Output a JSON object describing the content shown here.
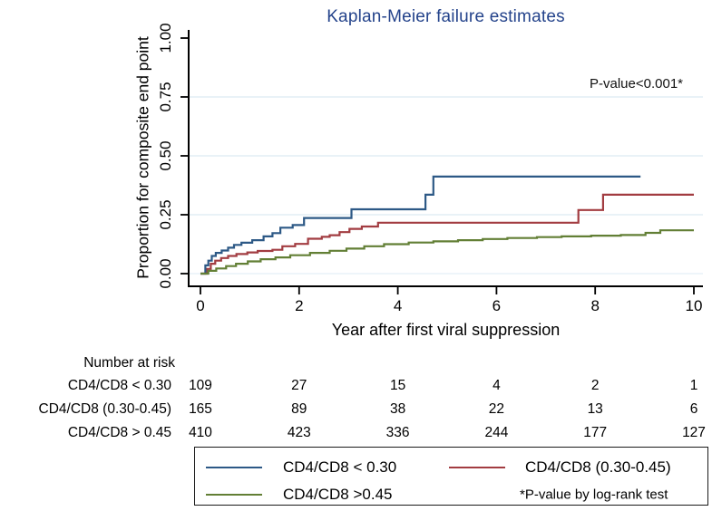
{
  "title": "Kaplan-Meier failure estimates",
  "annotation": "P-value<0.001*",
  "colors": {
    "title": "#24438b",
    "navy": "#2d5986",
    "maroon": "#a23c41",
    "olive": "#627f35",
    "grid": "#dce9f2",
    "zero_line": "#e4eff6",
    "axis": "#000000"
  },
  "chart_data": {
    "type": "line",
    "subtype": "kaplan-meier-step",
    "title": "Kaplan-Meier failure estimates",
    "xlabel": "Year after first viral suppression",
    "ylabel": "Proportion for composite end point",
    "xlim": [
      0,
      10
    ],
    "ylim": [
      0,
      1
    ],
    "x_ticks": [
      0,
      2,
      4,
      6,
      8,
      10
    ],
    "y_ticks": [
      {
        "value": 0.0,
        "label": "0.00"
      },
      {
        "value": 0.25,
        "label": "0.25"
      },
      {
        "value": 0.5,
        "label": "0.50"
      },
      {
        "value": 0.75,
        "label": "0.75"
      },
      {
        "value": 1.0,
        "label": "1.00"
      }
    ],
    "grid": "horizontal gridlines at 0.25, 0.50, 0.75 and faint baseline at 0.00",
    "legend_position": "boxed legend below plot",
    "annotation": "P-value<0.001*",
    "series": [
      {
        "id": "cd4cd8-lt-030",
        "name": "CD4/CD8 < 0.30",
        "color": "#2d5986",
        "end_x": 8.92,
        "steps": [
          [
            0,
            0
          ],
          [
            0.1,
            0.035
          ],
          [
            0.16,
            0.055
          ],
          [
            0.23,
            0.075
          ],
          [
            0.31,
            0.088
          ],
          [
            0.43,
            0.098
          ],
          [
            0.56,
            0.11
          ],
          [
            0.68,
            0.122
          ],
          [
            0.83,
            0.131
          ],
          [
            1.05,
            0.142
          ],
          [
            1.28,
            0.158
          ],
          [
            1.46,
            0.172
          ],
          [
            1.62,
            0.195
          ],
          [
            1.87,
            0.206
          ],
          [
            2.1,
            0.236
          ],
          [
            3.06,
            0.273
          ],
          [
            4.56,
            0.335
          ],
          [
            4.72,
            0.412
          ]
        ]
      },
      {
        "id": "cd4cd8-030-045",
        "name": "CD4/CD8 (0.30-0.45)",
        "color": "#a23c41",
        "end_x": 10,
        "steps": [
          [
            0,
            0
          ],
          [
            0.14,
            0.02
          ],
          [
            0.21,
            0.042
          ],
          [
            0.3,
            0.055
          ],
          [
            0.42,
            0.066
          ],
          [
            0.56,
            0.075
          ],
          [
            0.73,
            0.083
          ],
          [
            0.95,
            0.09
          ],
          [
            1.16,
            0.096
          ],
          [
            1.46,
            0.101
          ],
          [
            1.66,
            0.116
          ],
          [
            1.92,
            0.126
          ],
          [
            2.18,
            0.148
          ],
          [
            2.46,
            0.156
          ],
          [
            2.62,
            0.163
          ],
          [
            2.82,
            0.176
          ],
          [
            3.02,
            0.19
          ],
          [
            3.27,
            0.2
          ],
          [
            3.6,
            0.216
          ],
          [
            7.66,
            0.27
          ],
          [
            8.16,
            0.335
          ]
        ]
      },
      {
        "id": "cd4cd8-gt-045",
        "name": "CD4/CD8 >0.45",
        "color": "#627f35",
        "end_x": 10,
        "steps": [
          [
            0,
            0
          ],
          [
            0.16,
            0.012
          ],
          [
            0.32,
            0.022
          ],
          [
            0.52,
            0.032
          ],
          [
            0.72,
            0.042
          ],
          [
            0.96,
            0.052
          ],
          [
            1.22,
            0.061
          ],
          [
            1.52,
            0.069
          ],
          [
            1.82,
            0.078
          ],
          [
            2.22,
            0.088
          ],
          [
            2.62,
            0.097
          ],
          [
            2.96,
            0.106
          ],
          [
            3.32,
            0.116
          ],
          [
            3.72,
            0.125
          ],
          [
            4.22,
            0.132
          ],
          [
            4.72,
            0.137
          ],
          [
            5.22,
            0.142
          ],
          [
            5.72,
            0.147
          ],
          [
            6.22,
            0.151
          ],
          [
            6.82,
            0.155
          ],
          [
            7.32,
            0.158
          ],
          [
            7.92,
            0.161
          ],
          [
            8.52,
            0.164
          ],
          [
            9.02,
            0.173
          ],
          [
            9.32,
            0.184
          ]
        ]
      }
    ]
  },
  "risk_table": {
    "header": "Number at risk",
    "time_points": [
      0,
      2,
      4,
      6,
      8,
      10
    ],
    "rows": [
      {
        "label": "CD4/CD8 < 0.30",
        "values": [
          "109",
          "27",
          "15",
          "4",
          "2",
          "1"
        ]
      },
      {
        "label": "CD4/CD8 (0.30-0.45)",
        "values": [
          "165",
          "89",
          "38",
          "22",
          "13",
          "6"
        ]
      },
      {
        "label": "CD4/CD8 > 0.45",
        "values": [
          "410",
          "423",
          "336",
          "244",
          "177",
          "127"
        ]
      }
    ]
  },
  "legend": {
    "items": [
      {
        "label": "CD4/CD8 < 0.30",
        "color": "#2d5986"
      },
      {
        "label": "CD4/CD8 (0.30-0.45)",
        "color": "#a23c41"
      },
      {
        "label": "CD4/CD8 >0.45",
        "color": "#627f35"
      }
    ],
    "footnote": "*P-value by log-rank test"
  }
}
